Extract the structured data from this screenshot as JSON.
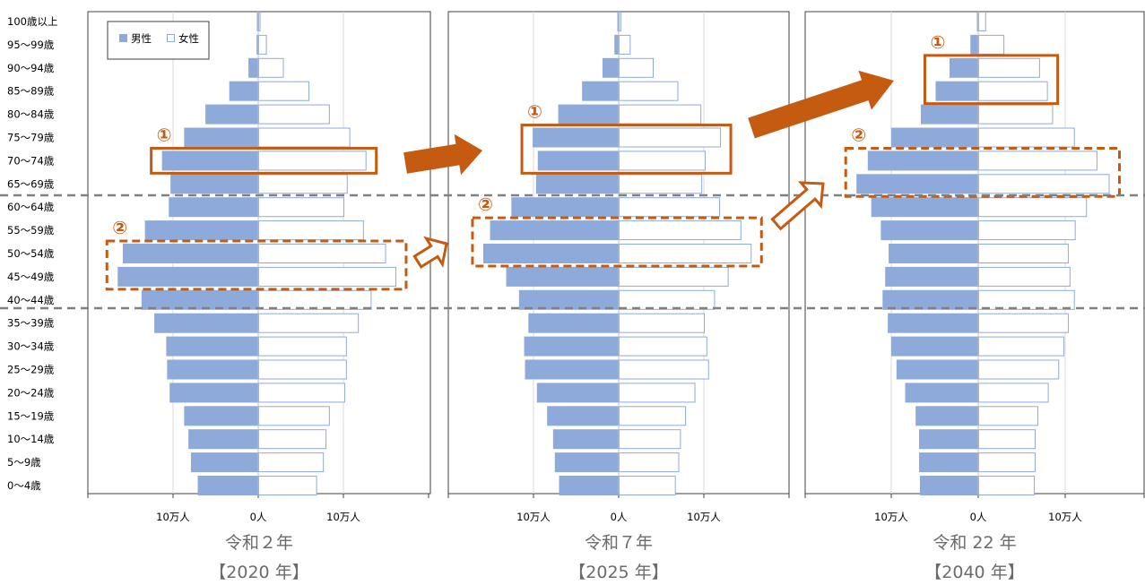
{
  "chart_data": {
    "type": "bar",
    "age_groups": [
      "100歳以上",
      "95～99歳",
      "90～94歳",
      "85～89歳",
      "80～84歳",
      "75～79歳",
      "70～74歳",
      "65～69歳",
      "60～64歳",
      "55～59歳",
      "50～54歳",
      "45～49歳",
      "40～44歳",
      "35～39歳",
      "30～34歳",
      "25～29歳",
      "20～24歳",
      "15～19歳",
      "10～14歳",
      "5～9歳",
      "0～4歳"
    ],
    "legend": {
      "male": "男性",
      "female": "女性",
      "placement": "top-left"
    },
    "tick_labels": [
      "10万人",
      "0人",
      "10万人"
    ],
    "colors": {
      "male": "#8eaadb",
      "female_stroke": "#8eaadb",
      "callout": "#c55a11",
      "guide": "#808080"
    },
    "panels": [
      {
        "caption": "令和２年",
        "year": "【2020 年】",
        "xlim": [
          -200000,
          200000
        ],
        "male": [
          200,
          2000,
          11500,
          34000,
          62000,
          87000,
          113000,
          103000,
          105000,
          133000,
          159000,
          165000,
          137000,
          122000,
          108000,
          107000,
          104000,
          87000,
          82000,
          79000,
          71000
        ],
        "female": [
          1000,
          9000,
          29000,
          59000,
          83000,
          107000,
          126000,
          104000,
          100000,
          123000,
          149000,
          161000,
          132000,
          117000,
          103000,
          103000,
          101000,
          83000,
          79000,
          76000,
          68000
        ],
        "callouts": [
          {
            "label": "①",
            "rows": [
              "70～74歳"
            ],
            "style": "solid"
          },
          {
            "label": "②",
            "rows": [
              "50～54歳",
              "45～49歳"
            ],
            "style": "dashed"
          }
        ]
      },
      {
        "caption": "令和７年",
        "year": "【2025 年】",
        "xlim": [
          -200000,
          200000
        ],
        "male": [
          300,
          5000,
          19000,
          43000,
          71000,
          101000,
          95000,
          97000,
          126000,
          151000,
          159000,
          132000,
          117000,
          106000,
          111000,
          110000,
          96000,
          84000,
          77000,
          75000,
          70000
        ],
        "female": [
          2000,
          13000,
          40000,
          69000,
          96000,
          119000,
          101000,
          97000,
          118000,
          143000,
          155000,
          128000,
          112000,
          100000,
          103000,
          105000,
          89000,
          78000,
          72000,
          70000,
          66000
        ],
        "callouts": [
          {
            "label": "①",
            "rows": [
              "75～79歳",
              "70～74歳"
            ],
            "style": "solid"
          },
          {
            "label": "②",
            "rows": [
              "55～59歳",
              "50～54歳"
            ],
            "style": "dashed"
          }
        ]
      },
      {
        "caption": "令和 22 年",
        "year": "【2040 年】",
        "xlim": [
          -200000,
          200000
        ],
        "male": [
          1000,
          9000,
          33000,
          49000,
          66000,
          100000,
          127000,
          140000,
          123000,
          112000,
          103000,
          107000,
          110000,
          104000,
          100000,
          94000,
          84000,
          72000,
          68000,
          68000,
          67000
        ],
        "female": [
          8000,
          29000,
          70000,
          79000,
          85000,
          110000,
          136000,
          150000,
          124000,
          111000,
          103000,
          105000,
          110000,
          103000,
          98000,
          92000,
          80000,
          68000,
          65000,
          65000,
          64000
        ],
        "callouts": [
          {
            "label": "①",
            "rows": [
              "90～94歳",
              "85～89歳"
            ],
            "style": "solid"
          },
          {
            "label": "②",
            "rows": [
              "70～74歳",
              "65～69歳"
            ],
            "style": "dashed"
          }
        ]
      }
    ]
  }
}
